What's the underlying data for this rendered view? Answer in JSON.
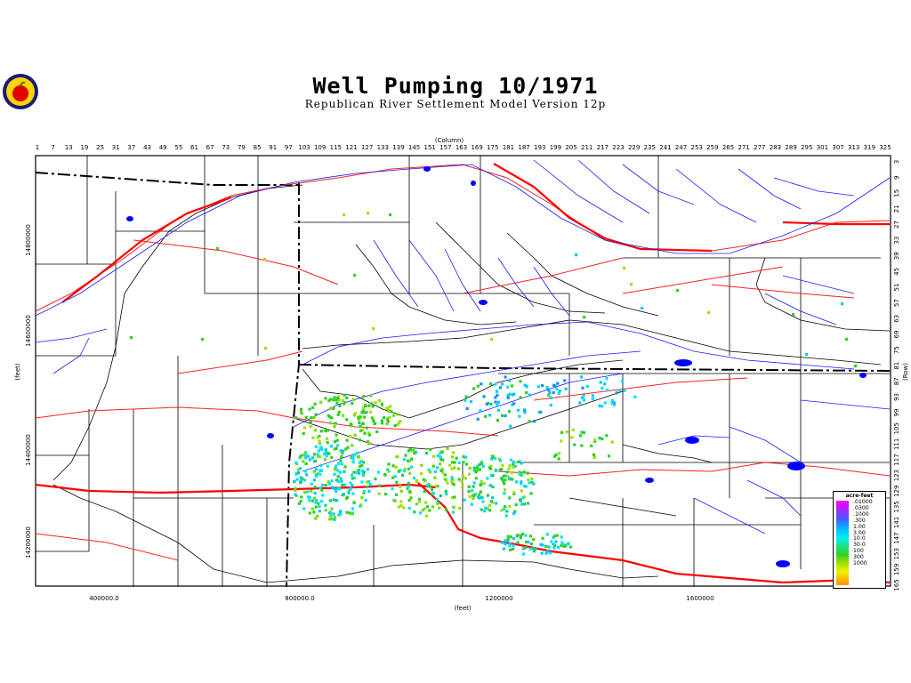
{
  "header": {
    "title": "Well Pumping 10/1971",
    "subtitle": "Republican River Settlement Model Version 12p"
  },
  "axes": {
    "column_label": "(Column)",
    "row_label": "(Row)",
    "x_label": "(feet)",
    "y_label": "(feet)",
    "columns": [
      "1",
      "7",
      "13",
      "19",
      "25",
      "31",
      "37",
      "43",
      "49",
      "55",
      "61",
      "67",
      "73",
      "79",
      "85",
      "91",
      "97",
      "103",
      "109",
      "115",
      "121",
      "127",
      "133",
      "139",
      "145",
      "151",
      "157",
      "163",
      "169",
      "175",
      "181",
      "187",
      "193",
      "199",
      "205",
      "211",
      "217",
      "223",
      "229",
      "235",
      "241",
      "247",
      "253",
      "259",
      "265",
      "271",
      "277",
      "283",
      "289",
      "295",
      "301",
      "307",
      "313",
      "319",
      "325"
    ],
    "rows": [
      "3",
      "9",
      "15",
      "21",
      "27",
      "33",
      "39",
      "45",
      "51",
      "57",
      "63",
      "69",
      "75",
      "81",
      "87",
      "93",
      "99",
      "105",
      "111",
      "117",
      "123",
      "129",
      "135",
      "141",
      "147",
      "153",
      "159",
      "165"
    ],
    "x_ticks": [
      "400000.0",
      "800000.0",
      "1200000",
      "1600000"
    ],
    "y_ticks": [
      "14800000",
      "14600000",
      "14400000",
      "14200000"
    ]
  },
  "legend": {
    "title": "acre-feet",
    "labels": [
      ".01000",
      ".0300",
      ".1000",
      ".300",
      "1.00",
      "3.00",
      "10.0",
      "30.0",
      "100",
      "300",
      "1000"
    ]
  },
  "colors": {
    "boundary": "#000000",
    "streams": "#1a1aff",
    "roads": "#ff0000",
    "wells_low": "#00e0ff",
    "wells_mid": "#30d020",
    "wells_high": "#a0e000"
  },
  "icons": {
    "logo": "apple-seal-logo"
  }
}
